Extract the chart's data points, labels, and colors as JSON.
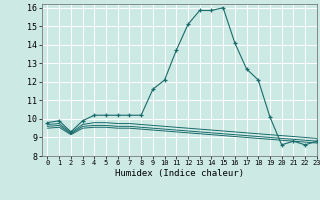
{
  "title": "",
  "xlabel": "Humidex (Indice chaleur)",
  "ylabel": "",
  "xlim": [
    -0.5,
    23
  ],
  "ylim": [
    8,
    16.2
  ],
  "yticks": [
    8,
    9,
    10,
    11,
    12,
    13,
    14,
    15,
    16
  ],
  "xticks": [
    0,
    1,
    2,
    3,
    4,
    5,
    6,
    7,
    8,
    9,
    10,
    11,
    12,
    13,
    14,
    15,
    16,
    17,
    18,
    19,
    20,
    21,
    22,
    23
  ],
  "bg_color": "#cce9e4",
  "line_color": "#1a6b6b",
  "grid_color": "#ffffff",
  "series": {
    "main": {
      "x": [
        0,
        1,
        2,
        3,
        4,
        5,
        6,
        7,
        8,
        9,
        10,
        11,
        12,
        13,
        14,
        15,
        16,
        17,
        18,
        19,
        20,
        21,
        22,
        23
      ],
      "y": [
        9.8,
        9.9,
        9.3,
        9.9,
        10.2,
        10.2,
        10.2,
        10.2,
        10.2,
        11.6,
        12.1,
        13.7,
        15.1,
        15.85,
        15.85,
        16.0,
        14.1,
        12.7,
        12.1,
        10.1,
        8.6,
        8.8,
        8.6,
        8.8
      ]
    },
    "line2": {
      "x": [
        0,
        1,
        2,
        3,
        4,
        5,
        6,
        7,
        8,
        9,
        10,
        11,
        12,
        13,
        14,
        15,
        16,
        17,
        18,
        19,
        20,
        21,
        22,
        23
      ],
      "y": [
        9.7,
        9.75,
        9.25,
        9.7,
        9.8,
        9.8,
        9.75,
        9.75,
        9.7,
        9.65,
        9.6,
        9.55,
        9.5,
        9.45,
        9.4,
        9.35,
        9.3,
        9.25,
        9.2,
        9.15,
        9.1,
        9.05,
        9.0,
        8.95
      ]
    },
    "line3": {
      "x": [
        0,
        1,
        2,
        3,
        4,
        5,
        6,
        7,
        8,
        9,
        10,
        11,
        12,
        13,
        14,
        15,
        16,
        17,
        18,
        19,
        20,
        21,
        22,
        23
      ],
      "y": [
        9.6,
        9.65,
        9.2,
        9.6,
        9.65,
        9.65,
        9.6,
        9.6,
        9.55,
        9.5,
        9.45,
        9.4,
        9.35,
        9.3,
        9.25,
        9.2,
        9.15,
        9.1,
        9.05,
        9.0,
        8.95,
        8.9,
        8.85,
        8.8
      ]
    },
    "line4": {
      "x": [
        0,
        1,
        2,
        3,
        4,
        5,
        6,
        7,
        8,
        9,
        10,
        11,
        12,
        13,
        14,
        15,
        16,
        17,
        18,
        19,
        20,
        21,
        22,
        23
      ],
      "y": [
        9.5,
        9.55,
        9.15,
        9.5,
        9.55,
        9.55,
        9.5,
        9.5,
        9.45,
        9.4,
        9.35,
        9.3,
        9.25,
        9.2,
        9.15,
        9.1,
        9.05,
        9.0,
        8.95,
        8.9,
        8.85,
        8.8,
        8.75,
        8.7
      ]
    }
  }
}
